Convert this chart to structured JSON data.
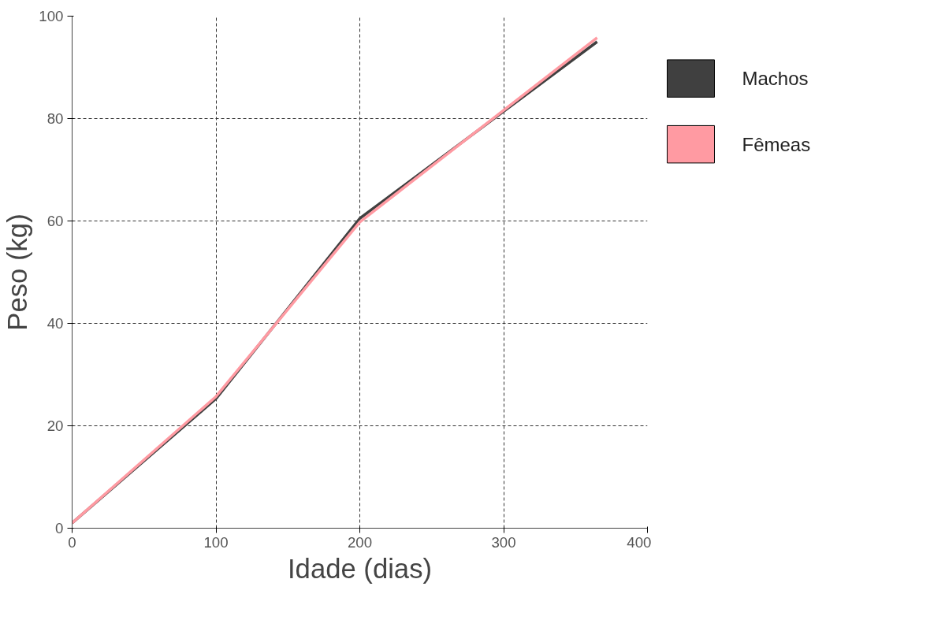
{
  "chart_data": {
    "type": "line",
    "xlabel": "Idade (dias)",
    "ylabel": "Peso (kg)",
    "xlim": [
      0,
      400
    ],
    "xticks": [
      0,
      100,
      200,
      300,
      400
    ],
    "ylim": [
      0,
      100
    ],
    "yticks": [
      0,
      20,
      40,
      60,
      80,
      100
    ],
    "grid": true,
    "legend": "right",
    "line_style": "solid",
    "series": [
      {
        "name": "Machos",
        "color": "#404040",
        "x": [
          0,
          100,
          200,
          365
        ],
        "values": [
          1,
          25.3,
          60.5,
          95
        ]
      },
      {
        "name": "Fêmeas",
        "color": "#ff9aa2",
        "x": [
          0,
          100,
          200,
          365
        ],
        "values": [
          1,
          25.7,
          59.8,
          95.8
        ]
      }
    ]
  }
}
